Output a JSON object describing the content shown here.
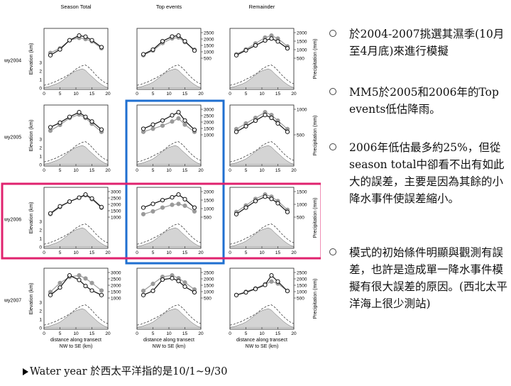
{
  "bullets": [
    {
      "text": "於2004-2007挑選其濕季(10月至4月底)來進行模擬"
    },
    {
      "text": "MM5於2005和2006年的Top events低估降雨。"
    },
    {
      "text": "2006年低估最多約25%，但從season total中卻看不出有如此大的誤差，主要是因為其餘的小降水事件使誤差縮小。"
    },
    {
      "text": "模式的初始條件明顯與觀測有誤差，也許是造成單一降水事件模擬有很大誤差的原因。(西北太平洋海上很少測站)"
    }
  ],
  "footnote": "Water year 於西太平洋指的是10/1~9/30",
  "figure": {
    "column_titles": [
      "Season Total",
      "Top events",
      "Remainder"
    ],
    "row_labels": [
      "wy2004",
      "wy2005",
      "wy2006",
      "wy2007"
    ],
    "left_axis_label": "Elevation (km)",
    "right_axis_label": "Precipitation (mm)",
    "xlabel": "distance along transect",
    "x_sublabels": [
      "NW to SE (km)",
      "NW to SE (km)",
      "NW to SE (km)"
    ],
    "x_ticks": [
      "0",
      "5",
      "10",
      "15",
      "20"
    ],
    "elev_ticks": [
      "0",
      "1",
      "2",
      "3"
    ]
  },
  "colors": {
    "blue_box": "#1f6fd0",
    "pink_box": "#e0226e",
    "obs_line": "#111111",
    "model_line": "#9a9a9a",
    "terrain": "#d4d4d4"
  },
  "chart_data": {
    "type": "line",
    "x": [
      2,
      5,
      8,
      11,
      13,
      15,
      18
    ],
    "xlim": [
      0,
      20
    ],
    "panels": [
      {
        "row": "wy2004",
        "column": "Season Total",
        "yticks": [],
        "series": [
          {
            "values": [
              1200,
              1450,
              1850,
              2050,
              2000,
              1850,
              1550
            ]
          },
          {
            "values": [
              1300,
              1500,
              1850,
              1950,
              1900,
              1800,
              1500
            ]
          }
        ]
      },
      {
        "row": "wy2004",
        "column": "Top events",
        "yticks": [
          "500",
          "1000",
          "1500",
          "2000",
          "2500"
        ],
        "series": [
          {
            "values": [
              1050,
              1300,
              1750,
              2000,
              2050,
              1750,
              1250
            ]
          },
          {
            "values": [
              1000,
              1250,
              1650,
              1900,
              1950,
              1700,
              1300
            ]
          }
        ]
      },
      {
        "row": "wy2004",
        "column": "Remainder",
        "yticks": [
          "500",
          "1000",
          "1500",
          "2000"
        ],
        "series": [
          {
            "values": [
              900,
              1150,
              1400,
              1650,
              1750,
              1600,
              1250
            ]
          },
          {
            "values": [
              950,
              1200,
              1500,
              1800,
              1900,
              1750,
              1350
            ]
          }
        ]
      },
      {
        "row": "wy2005",
        "column": "Season Total",
        "yticks": [],
        "series": [
          {
            "values": [
              1300,
              1500,
              1750,
              1950,
              1750,
              1550,
              1200
            ]
          },
          {
            "values": [
              1150,
              1400,
              1700,
              1850,
              1700,
              1450,
              1100
            ]
          }
        ]
      },
      {
        "row": "wy2005",
        "column": "Top events",
        "yticks": [
          "1000",
          "1500",
          "2000",
          "2500",
          "3000"
        ],
        "series": [
          {
            "values": [
              1500,
              1700,
              1900,
              2150,
              2300,
              1900,
              1450
            ]
          },
          {
            "values": [
              1350,
              1500,
              1650,
              1850,
              2000,
              1700,
              1350
            ]
          }
        ]
      },
      {
        "row": "wy2005",
        "column": "Remainder",
        "yticks": [
          "500",
          "1000"
        ],
        "series": [
          {
            "values": [
              650,
              750,
              850,
              950,
              900,
              800,
              650
            ]
          },
          {
            "values": [
              700,
              800,
              900,
              1000,
              950,
              850,
              700
            ]
          }
        ]
      },
      {
        "row": "wy2006",
        "column": "Season Total",
        "yticks": [
          "1000",
          "1500",
          "2000",
          "2500",
          "3000"
        ],
        "series": [
          {
            "values": [
              1500,
              1950,
              2250,
              2500,
              2700,
              2450,
              1900
            ]
          },
          {
            "values": [
              1450,
              1900,
              2250,
              2500,
              2650,
              2400,
              1850
            ]
          }
        ]
      },
      {
        "row": "wy2006",
        "column": "Top events",
        "yticks": [
          "500",
          "1000",
          "1500",
          "2000"
        ],
        "series": [
          {
            "values": [
              1300,
              1500,
              1700,
              1850,
              2000,
              1750,
              1300
            ]
          },
          {
            "values": [
              950,
              1100,
              1300,
              1450,
              1500,
              1400,
              1100
            ]
          }
        ]
      },
      {
        "row": "wy2006",
        "column": "Remainder",
        "yticks": [
          "500",
          "1000",
          "1500"
        ],
        "series": [
          {
            "values": [
              1000,
              1150,
              1300,
              1400,
              1350,
              1250,
              1050
            ]
          },
          {
            "values": [
              1050,
              1200,
              1350,
              1450,
              1400,
              1300,
              1100
            ]
          }
        ]
      },
      {
        "row": "wy2007",
        "column": "Season Total",
        "yticks": [
          "1000",
          "1500",
          "2000",
          "2500",
          "3000"
        ],
        "series": [
          {
            "values": [
              1300,
              1800,
              2600,
              2300,
              1900,
              1600,
              1300
            ]
          },
          {
            "values": [
              1500,
              2100,
              2500,
              2600,
              2400,
              2100,
              1600
            ]
          }
        ]
      },
      {
        "row": "wy2007",
        "column": "Top events",
        "yticks": [
          "500",
          "1000",
          "1500",
          "2000",
          "2500"
        ],
        "series": [
          {
            "values": [
              900,
              1200,
              2000,
              2100,
              1900,
              1500,
              1100
            ]
          },
          {
            "values": [
              1200,
              1700,
              2200,
              2300,
              2100,
              1800,
              1300
            ]
          }
        ]
      },
      {
        "row": "wy2007",
        "column": "Remainder",
        "yticks": [
          "500",
          "1000",
          "1500",
          "2000",
          "2500"
        ],
        "series": [
          {
            "values": [
              1000,
              1200,
              1450,
              1750,
              2450,
              2000,
              1300
            ]
          },
          {
            "values": [
              1000,
              1250,
              1500,
              1800,
              2000,
              1850,
              1300
            ]
          }
        ]
      }
    ]
  }
}
